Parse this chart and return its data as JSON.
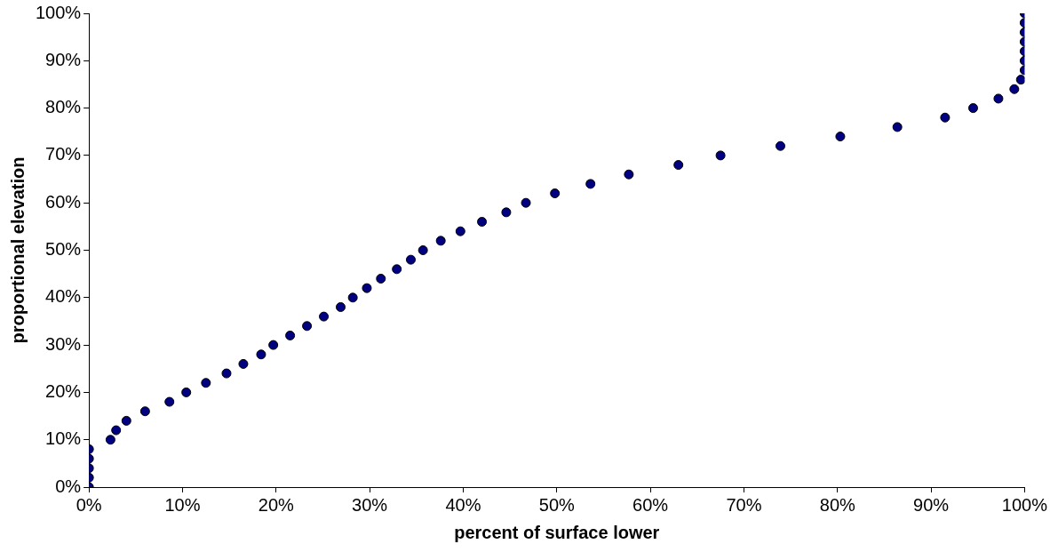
{
  "chart_data": {
    "type": "scatter",
    "xlabel": "percent of surface lower",
    "ylabel": "proportional elevation",
    "x": [
      0,
      0,
      0,
      0,
      0,
      2.3,
      2.9,
      4.0,
      6.0,
      8.6,
      10.4,
      12.5,
      14.7,
      16.5,
      18.4,
      19.7,
      21.5,
      23.3,
      25.1,
      26.9,
      28.2,
      29.7,
      31.2,
      32.9,
      34.4,
      35.7,
      37.6,
      39.7,
      42.0,
      44.6,
      46.7,
      49.8,
      53.6,
      57.7,
      63.0,
      67.5,
      73.9,
      80.3,
      86.4,
      91.5,
      94.5,
      97.2,
      98.9,
      99.6,
      100,
      100,
      100,
      100,
      100,
      100,
      100
    ],
    "series": [
      {
        "color": "#000080",
        "values": [
          0,
          2,
          4,
          6,
          8,
          10,
          12,
          14,
          16,
          18,
          20,
          22,
          24,
          26,
          28,
          30,
          32,
          34,
          36,
          38,
          40,
          42,
          44,
          46,
          48,
          50,
          52,
          54,
          56,
          58,
          60,
          62,
          64,
          66,
          68,
          70,
          72,
          74,
          76,
          78,
          80,
          82,
          84,
          86,
          88,
          90,
          92,
          94,
          96,
          98,
          100
        ]
      }
    ],
    "xlim": [
      0,
      100
    ],
    "xticks": [
      {
        "value": 0,
        "label": "0%"
      },
      {
        "value": 10,
        "label": "10%"
      },
      {
        "value": 20,
        "label": "20%"
      },
      {
        "value": 30,
        "label": "30%"
      },
      {
        "value": 40,
        "label": "40%"
      },
      {
        "value": 50,
        "label": "50%"
      },
      {
        "value": 60,
        "label": "60%"
      },
      {
        "value": 70,
        "label": "70%"
      },
      {
        "value": 80,
        "label": "80%"
      },
      {
        "value": 90,
        "label": "90%"
      },
      {
        "value": 100,
        "label": "100%"
      }
    ],
    "ylim": [
      0,
      100
    ],
    "yticks": [
      {
        "value": 0,
        "label": "0%"
      },
      {
        "value": 10,
        "label": "10%"
      },
      {
        "value": 20,
        "label": "20%"
      },
      {
        "value": 30,
        "label": "30%"
      },
      {
        "value": 40,
        "label": "40%"
      },
      {
        "value": 50,
        "label": "50%"
      },
      {
        "value": 60,
        "label": "60%"
      },
      {
        "value": 70,
        "label": "70%"
      },
      {
        "value": 80,
        "label": "80%"
      },
      {
        "value": 90,
        "label": "90%"
      },
      {
        "value": 100,
        "label": "100%"
      }
    ],
    "grid": false,
    "legend": false,
    "marker": "circle"
  }
}
